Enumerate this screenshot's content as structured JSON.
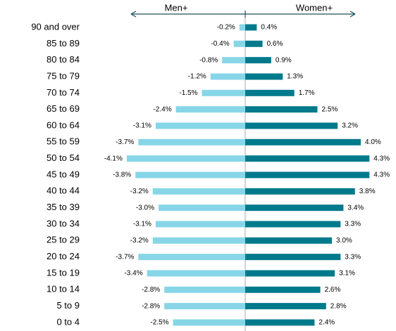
{
  "chart_data": {
    "type": "bar",
    "categories": [
      "90 and over",
      "85 to 89",
      "80 to 84",
      "75 to 79",
      "70 to 74",
      "65 to 69",
      "60 to 64",
      "55 to 59",
      "50 to 54",
      "45 to 49",
      "40 to 44",
      "35 to 39",
      "30 to 34",
      "25 to 29",
      "20 to 24",
      "15 to 19",
      "10 to 14",
      "5 to 9",
      "0 to 4"
    ],
    "series": [
      {
        "name": "Men+",
        "color": "#87d6e8",
        "values": [
          -0.2,
          -0.4,
          -0.8,
          -1.2,
          -1.5,
          -2.4,
          -3.1,
          -3.7,
          -4.1,
          -3.8,
          -3.2,
          -3.0,
          -3.1,
          -3.2,
          -3.7,
          -3.4,
          -2.8,
          -2.8,
          -2.5
        ],
        "value_labels": [
          "-0.2%",
          "-0.4%",
          "-0.8%",
          "-1.2%",
          "-1.5%",
          "-2.4%",
          "-3.1%",
          "-3.7%",
          "-4.1%",
          "-3.8%",
          "-3.2%",
          "-3.0%",
          "-3.1%",
          "-3.2%",
          "-3.7%",
          "-3.4%",
          "-2.8%",
          "-2.8%",
          "-2.5%"
        ]
      },
      {
        "name": "Women+",
        "color": "#037a8c",
        "values": [
          0.4,
          0.6,
          0.9,
          1.3,
          1.7,
          2.5,
          3.2,
          4.0,
          4.3,
          4.3,
          3.8,
          3.4,
          3.3,
          3.0,
          3.3,
          3.1,
          2.6,
          2.8,
          2.4
        ],
        "value_labels": [
          "0.4%",
          "0.6%",
          "0.9%",
          "1.3%",
          "1.7%",
          "2.5%",
          "3.2%",
          "4.0%",
          "4.3%",
          "4.3%",
          "3.8%",
          "3.4%",
          "3.3%",
          "3.0%",
          "3.3%",
          "3.1%",
          "2.6%",
          "2.8%",
          "2.4%"
        ]
      }
    ]
  }
}
